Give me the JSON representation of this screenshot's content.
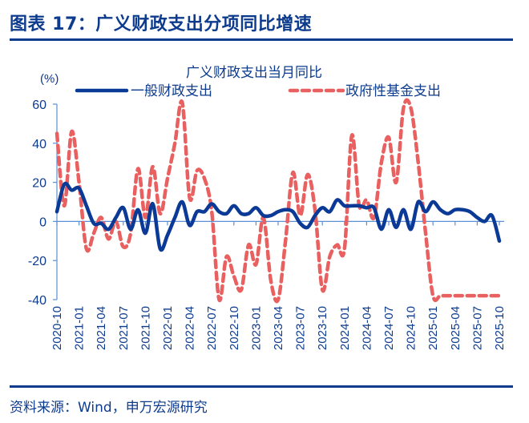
{
  "figure": {
    "title": "图表 17：广义财政支出分项同比增速",
    "source": "资料来源：Wind，申万宏源研究"
  },
  "colors": {
    "title": "#0d3b8e",
    "series_general": "#0b3a96",
    "series_fund": "#e8605f",
    "axis": "#5b8fd6"
  },
  "chart_data": {
    "type": "line",
    "title": "广义财政支出当月同比",
    "ylabel": "(%)",
    "xlabel": "",
    "ylim": [
      -40,
      60
    ],
    "yticks": [
      60,
      40,
      20,
      0,
      -20,
      -40
    ],
    "grid": false,
    "legend_position": "top",
    "x_tick_labels": [
      "2020-10",
      "2021-01",
      "2021-04",
      "2021-07",
      "2021-10",
      "2022-01",
      "2022-04",
      "2022-07",
      "2022-10",
      "2023-01",
      "2023-04",
      "2023-07",
      "2023-10",
      "2024-01",
      "2024-04",
      "2024-07",
      "2024-10",
      "2025-01",
      "2025-04",
      "2025-07",
      "2025-10"
    ],
    "x": [
      "2020-10",
      "2020-11",
      "2020-12",
      "2021-01",
      "2021-02",
      "2021-03",
      "2021-04",
      "2021-05",
      "2021-06",
      "2021-07",
      "2021-08",
      "2021-09",
      "2021-10",
      "2021-11",
      "2021-12",
      "2022-01",
      "2022-02",
      "2022-03",
      "2022-04",
      "2022-05",
      "2022-06",
      "2022-07",
      "2022-08",
      "2022-09",
      "2022-10",
      "2022-11",
      "2022-12",
      "2023-01",
      "2023-02",
      "2023-03",
      "2023-04",
      "2023-05",
      "2023-06",
      "2023-07",
      "2023-08",
      "2023-09",
      "2023-10",
      "2023-11",
      "2023-12",
      "2024-01",
      "2024-02",
      "2024-03",
      "2024-04",
      "2024-05",
      "2024-06",
      "2024-07",
      "2024-08",
      "2024-09",
      "2024-10",
      "2024-11",
      "2024-12",
      "2025-01",
      "2025-02",
      "2025-03",
      "2025-04",
      "2025-05",
      "2025-06",
      "2025-07",
      "2025-08",
      "2025-09",
      "2025-10"
    ],
    "series": [
      {
        "name": "一般财政支出",
        "style": "solid",
        "values": [
          5,
          19,
          16,
          17,
          8,
          -1,
          -1,
          -4,
          2,
          7,
          -4,
          6,
          -6,
          9,
          -14,
          -7,
          2,
          10,
          -2,
          5,
          5,
          9,
          5,
          4,
          8,
          4,
          4,
          7,
          3,
          3,
          5,
          6,
          5,
          -1,
          -3,
          3,
          7,
          5,
          11,
          8,
          8,
          8,
          7,
          7,
          -4,
          6,
          -3,
          6,
          -4,
          10,
          5,
          10,
          6,
          4,
          6,
          6,
          5,
          2,
          0,
          3,
          -10
        ]
      },
      {
        "name": "政府性基金支出",
        "style": "dashed",
        "values": [
          45,
          8,
          46,
          20,
          -14,
          -6,
          2,
          -9,
          0,
          -13,
          -6,
          27,
          2,
          28,
          4,
          22,
          40,
          61,
          12,
          26,
          22,
          5,
          -40,
          -18,
          -28,
          -35,
          -12,
          -22,
          2,
          -30,
          -40,
          -10,
          25,
          3,
          24,
          6,
          -35,
          -18,
          -12,
          -14,
          44,
          8,
          11,
          2,
          30,
          43,
          20,
          58,
          58,
          30,
          -6,
          -38,
          -38,
          -38,
          -38,
          -38,
          -38,
          -38,
          -38,
          -38,
          -38
        ]
      }
    ]
  }
}
